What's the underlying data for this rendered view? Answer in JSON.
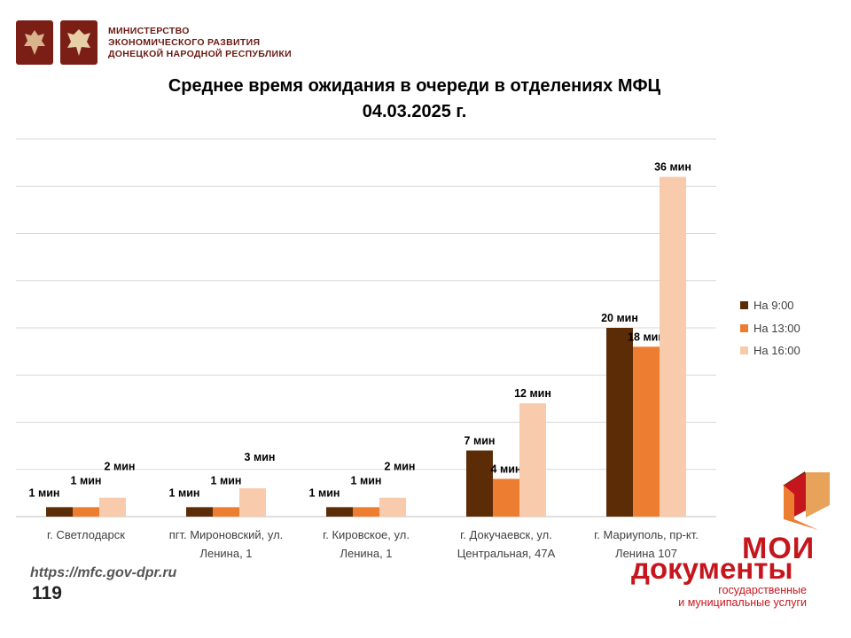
{
  "header": {
    "ministry_lines": [
      "МИНИСТЕРСТВО",
      "ЭКОНОМИЧЕСКОГО РАЗВИТИЯ",
      "ДОНЕЦКОЙ НАРОДНОЙ РЕСПУБЛИКИ"
    ]
  },
  "chart_data": {
    "type": "bar",
    "title": "Среднее время ожидания в очереди в отделениях МФЦ",
    "subtitle": "04.03.2025 г.",
    "categories": [
      [
        "г. Светлодарск"
      ],
      [
        "пгт. Мироновский, ул.",
        "Ленина, 1"
      ],
      [
        "г. Кировское, ул.",
        "Ленина, 1"
      ],
      [
        "г. Докучаевск, ул.",
        "Центральная, 47А"
      ],
      [
        "г. Мариуполь, пр-кт.",
        "Ленина 107"
      ]
    ],
    "series": [
      {
        "name": "На 9:00",
        "color": "#5c2c06",
        "values": [
          1,
          1,
          1,
          7,
          20
        ],
        "labels": [
          "1 мин",
          "1 мин",
          "1 мин",
          "7 мин",
          "20 мин"
        ]
      },
      {
        "name": "На 13:00",
        "color": "#ed7d31",
        "values": [
          1,
          1,
          1,
          4,
          18
        ],
        "labels": [
          "1 мин",
          "1 мин",
          "1 мин",
          "4 мин",
          "18 мин"
        ]
      },
      {
        "name": "На 16:00",
        "color": "#f8cbad",
        "values": [
          2,
          3,
          2,
          12,
          36
        ],
        "labels": [
          "2 мин",
          "3 мин",
          "2 мин",
          "12 мин",
          "36 мин"
        ]
      }
    ],
    "ylim": [
      0,
      40
    ],
    "grid": true,
    "legend_position": "right"
  },
  "footer": {
    "url": "https://mfc.gov-dpr.ru",
    "page": "119"
  },
  "brand": {
    "line1": "МОИ",
    "line2": "документы",
    "line3": "государственные",
    "line4": "и муниципальные услуги",
    "color": "#c6161d"
  }
}
